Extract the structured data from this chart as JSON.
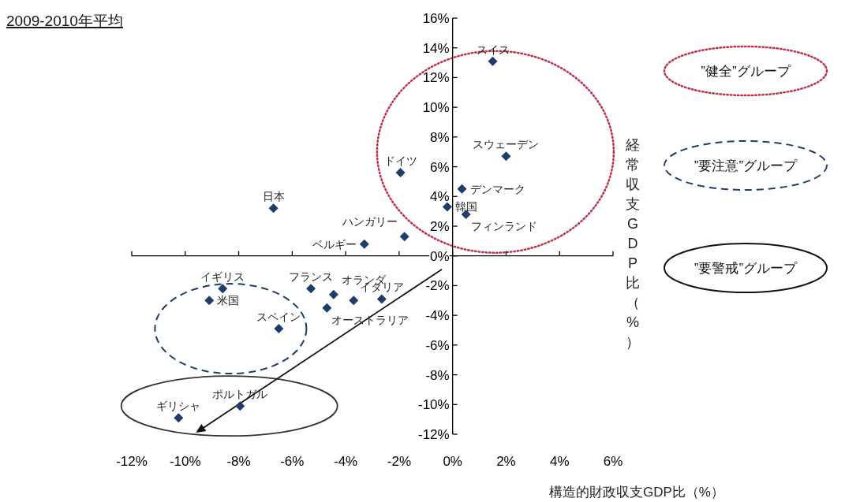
{
  "chart_data": {
    "type": "scatter",
    "title": "2009-2010年平均",
    "xlabel": "構造的財政収支GDP比（%）",
    "ylabel": "経常収支GDP比（%）",
    "marker": "diamond",
    "xlim": [
      -12,
      6
    ],
    "ylim": [
      -12,
      16
    ],
    "xticks": [
      {
        "value": -12,
        "label": "-12%"
      },
      {
        "value": -10,
        "label": "-10%"
      },
      {
        "value": -8,
        "label": "-8%"
      },
      {
        "value": -6,
        "label": "-6%"
      },
      {
        "value": -4,
        "label": "-4%"
      },
      {
        "value": -2,
        "label": "-2%"
      },
      {
        "value": 0,
        "label": "0%"
      },
      {
        "value": 2,
        "label": "2%"
      },
      {
        "value": 4,
        "label": "4%"
      },
      {
        "value": 6,
        "label": "6%"
      }
    ],
    "yticks": [
      {
        "value": -12,
        "label": "-12%"
      },
      {
        "value": -10,
        "label": "-10%"
      },
      {
        "value": -8,
        "label": "-8%"
      },
      {
        "value": -6,
        "label": "-6%"
      },
      {
        "value": -4,
        "label": "-4%"
      },
      {
        "value": -2,
        "label": "-2%"
      },
      {
        "value": 0,
        "label": "0%"
      },
      {
        "value": 2,
        "label": "2%"
      },
      {
        "value": 4,
        "label": "4%"
      },
      {
        "value": 6,
        "label": "6%"
      },
      {
        "value": 8,
        "label": "8%"
      },
      {
        "value": 10,
        "label": "10%"
      },
      {
        "value": 12,
        "label": "12%"
      },
      {
        "value": 14,
        "label": "14%"
      },
      {
        "value": 16,
        "label": "16%"
      }
    ],
    "series": [
      {
        "color": "#1f3d6b",
        "x": [
          1.5,
          2.0,
          0.35,
          -0.2,
          0.5,
          -1.95,
          -1.8,
          -3.3,
          -6.7,
          -8.6,
          -9.1,
          -6.5,
          -5.3,
          -4.45,
          -4.7,
          -3.7,
          -2.65,
          -10.25,
          -7.95
        ],
        "values": [
          13.1,
          6.7,
          4.5,
          3.3,
          2.8,
          5.6,
          1.3,
          0.8,
          3.2,
          -2.2,
          -3.0,
          -4.9,
          -2.2,
          -2.6,
          -3.5,
          -3.0,
          -2.9,
          -10.9,
          -10.1
        ]
      }
    ],
    "annotations": [
      {
        "text": "スイス",
        "x": 1.5,
        "y": 13.1
      },
      {
        "text": "スウェーデン",
        "x": 2.0,
        "y": 6.7
      },
      {
        "text": "デンマーク",
        "x": 0.35,
        "y": 4.5
      },
      {
        "text": "韓国",
        "x": -0.2,
        "y": 3.3
      },
      {
        "text": "フィンランド",
        "x": 0.5,
        "y": 2.8
      },
      {
        "text": "ドイツ",
        "x": -1.95,
        "y": 5.6
      },
      {
        "text": "ハンガリー",
        "x": -1.8,
        "y": 1.3
      },
      {
        "text": "ベルギー",
        "x": -3.3,
        "y": 0.8
      },
      {
        "text": "日本",
        "x": -6.7,
        "y": 3.2
      },
      {
        "text": "イギリス",
        "x": -8.6,
        "y": -2.2
      },
      {
        "text": "米国",
        "x": -9.1,
        "y": -3.0
      },
      {
        "text": "スペイン",
        "x": -6.5,
        "y": -4.9
      },
      {
        "text": "フランス",
        "x": -5.3,
        "y": -2.2
      },
      {
        "text": "オランダ",
        "x": -4.45,
        "y": -2.6
      },
      {
        "text": "オーストラリア",
        "x": -4.7,
        "y": -3.5
      },
      {
        "text": "イタリア",
        "x": -2.65,
        "y": -2.9
      },
      {
        "text": "ギリシャ",
        "x": -10.25,
        "y": -10.9
      },
      {
        "text": "ポルトガル",
        "x": -7.95,
        "y": -10.1
      },
      "”健全”グループ",
      "”要注意”グループ",
      "”要警戒”グループ"
    ]
  }
}
